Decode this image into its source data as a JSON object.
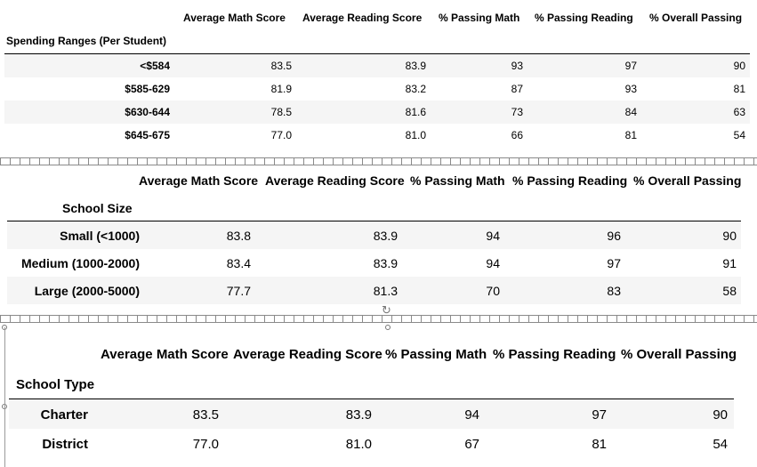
{
  "columns": [
    "Average Math Score",
    "Average Reading Score",
    "% Passing Math",
    "% Passing Reading",
    "% Overall Passing"
  ],
  "spending": {
    "index_label": "Spending Ranges (Per Student)",
    "rows": [
      {
        "label": "<$584",
        "values": [
          "83.5",
          "83.9",
          "93",
          "97",
          "90"
        ]
      },
      {
        "label": "$585-629",
        "values": [
          "81.9",
          "83.2",
          "87",
          "93",
          "81"
        ]
      },
      {
        "label": "$630-644",
        "values": [
          "78.5",
          "81.6",
          "73",
          "84",
          "63"
        ]
      },
      {
        "label": "$645-675",
        "values": [
          "77.0",
          "81.0",
          "66",
          "81",
          "54"
        ]
      }
    ]
  },
  "size": {
    "index_label": "School Size",
    "rows": [
      {
        "label": "Small (<1000)",
        "values": [
          "83.8",
          "83.9",
          "94",
          "96",
          "90"
        ]
      },
      {
        "label": "Medium (1000-2000)",
        "values": [
          "83.4",
          "83.9",
          "94",
          "97",
          "91"
        ]
      },
      {
        "label": "Large (2000-5000)",
        "values": [
          "77.7",
          "81.3",
          "70",
          "83",
          "58"
        ]
      }
    ]
  },
  "type": {
    "index_label": "School Type",
    "rows": [
      {
        "label": "Charter",
        "values": [
          "83.5",
          "83.9",
          "94",
          "97",
          "90"
        ]
      },
      {
        "label": "District",
        "values": [
          "77.0",
          "81.0",
          "67",
          "81",
          "54"
        ]
      }
    ]
  }
}
